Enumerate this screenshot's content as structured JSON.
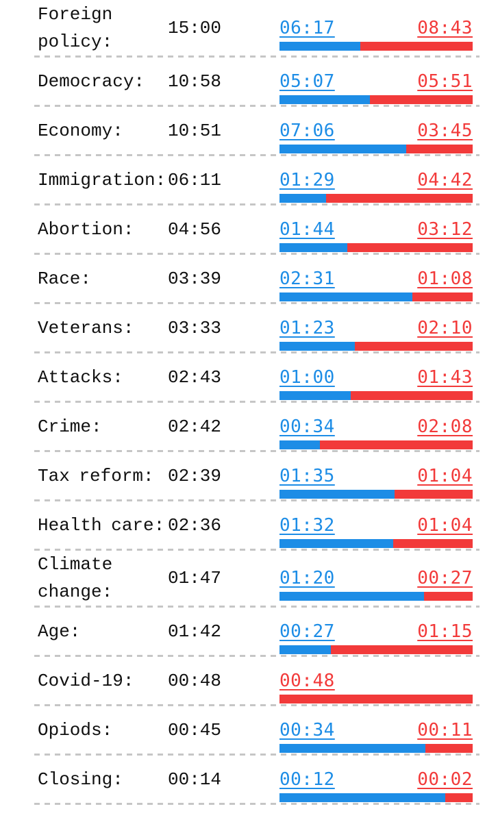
{
  "page": {
    "background": "#ffffff"
  },
  "chart_data": {
    "type": "bar",
    "variant": "horizontal-stacked-normalized-per-row",
    "title": "",
    "xlabel": "",
    "ylabel": "",
    "legend_position": "none",
    "grid": "dashed-row-separators",
    "colors": {
      "dem_blue": "#1d8de6",
      "rep_red": "#f23a3a",
      "text_black": "#101010",
      "separator_gray": "#c6c6c6"
    },
    "columns": [
      "topic",
      "total_time",
      "dem_time",
      "rep_time"
    ],
    "rows": [
      {
        "topic": "Foreign policy:",
        "total": "15:00",
        "dem": "06:17",
        "rep": "08:43"
      },
      {
        "topic": "Democracy:",
        "total": "10:58",
        "dem": "05:07",
        "rep": "05:51"
      },
      {
        "topic": "Economy:",
        "total": "10:51",
        "dem": "07:06",
        "rep": "03:45"
      },
      {
        "topic": "Immigration:",
        "total": "06:11",
        "dem": "01:29",
        "rep": "04:42"
      },
      {
        "topic": "Abortion:",
        "total": "04:56",
        "dem": "01:44",
        "rep": "03:12"
      },
      {
        "topic": "Race:",
        "total": "03:39",
        "dem": "02:31",
        "rep": "01:08"
      },
      {
        "topic": "Veterans:",
        "total": "03:33",
        "dem": "01:23",
        "rep": "02:10"
      },
      {
        "topic": "Attacks:",
        "total": "02:43",
        "dem": "01:00",
        "rep": "01:43"
      },
      {
        "topic": "Crime:",
        "total": "02:42",
        "dem": "00:34",
        "rep": "02:08"
      },
      {
        "topic": "Tax reform:",
        "total": "02:39",
        "dem": "01:35",
        "rep": "01:04"
      },
      {
        "topic": "Health care:",
        "total": "02:36",
        "dem": "01:32",
        "rep": "01:04"
      },
      {
        "topic": "Climate change:",
        "total": "01:47",
        "dem": "01:20",
        "rep": "00:27"
      },
      {
        "topic": "Age:",
        "total": "01:42",
        "dem": "00:27",
        "rep": "01:15"
      },
      {
        "topic": "Covid-19:",
        "total": "00:48",
        "dem": null,
        "rep": "00:48"
      },
      {
        "topic": "Opiods:",
        "total": "00:45",
        "dem": "00:34",
        "rep": "00:11"
      },
      {
        "topic": "Closing:",
        "total": "00:14",
        "dem": "00:12",
        "rep": "00:02"
      }
    ]
  }
}
